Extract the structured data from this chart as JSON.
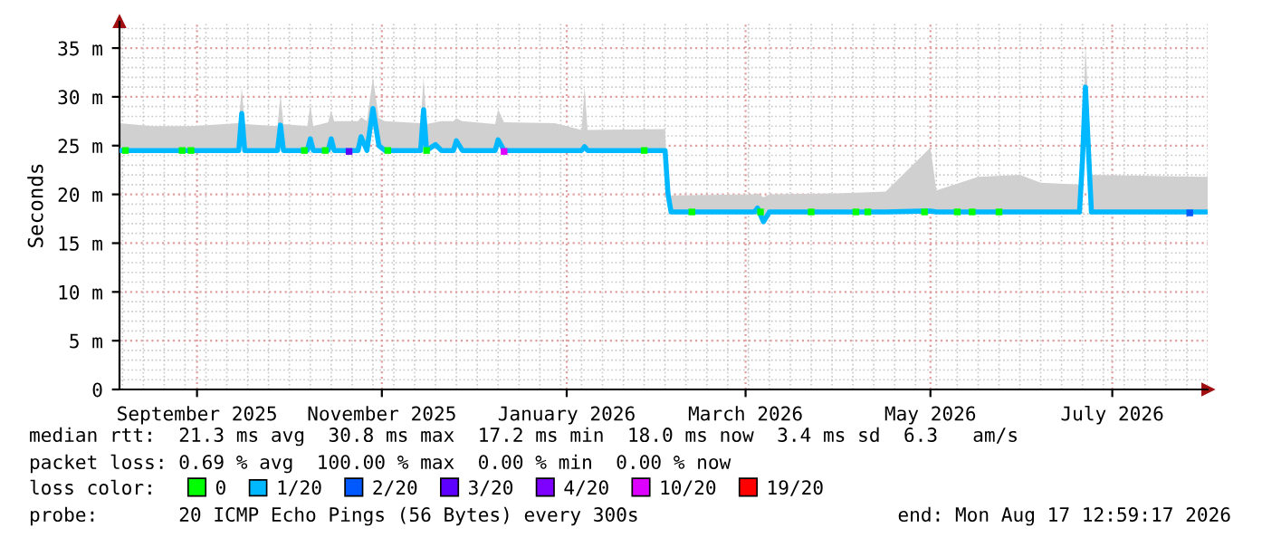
{
  "chart_data": {
    "type": "line",
    "ylabel": "Seconds",
    "xlim": [
      "2025-08-17",
      "2026-08-17"
    ],
    "xticks": [
      {
        "value": "2025-09-12",
        "label": "September 2025"
      },
      {
        "value": "2025-11-13",
        "label": "November 2025"
      },
      {
        "value": "2026-01-14",
        "label": "January 2026"
      },
      {
        "value": "2026-03-15",
        "label": "March 2026"
      },
      {
        "value": "2026-05-16",
        "label": "May 2026"
      },
      {
        "value": "2026-07-16",
        "label": "July 2026"
      }
    ],
    "ylim": [
      0,
      37.7
    ],
    "yticks": [
      0,
      {
        "value": 5,
        "label": "5 m"
      },
      {
        "value": 10,
        "label": "10 m"
      },
      {
        "value": 15,
        "label": "15 m"
      },
      {
        "value": 20,
        "label": "20 m"
      },
      {
        "value": 25,
        "label": "25 m"
      },
      {
        "value": 30,
        "label": "30 m"
      },
      {
        "value": 35,
        "label": "35 m"
      }
    ],
    "grid": true,
    "legend": "bottom",
    "legend_title": "loss color:",
    "series": [
      {
        "name": "0",
        "type": "scatter",
        "marker": "square",
        "color": "#00ff00",
        "x": [
          "2025-08-19",
          "2025-09-07",
          "2025-09-10",
          "2025-10-18",
          "2025-10-25",
          "2025-11-15",
          "2025-11-28",
          "2026-02-09",
          "2026-02-25",
          "2026-03-20",
          "2026-04-06",
          "2026-04-21",
          "2026-04-25",
          "2026-05-14",
          "2026-05-25",
          "2026-05-30",
          "2026-06-08"
        ],
        "values": [
          24.5,
          24.5,
          24.5,
          24.5,
          24.5,
          24.5,
          24.5,
          24.5,
          18.2,
          18.2,
          18.2,
          18.2,
          18.2,
          18.2,
          18.2,
          18.2,
          18.2
        ]
      },
      {
        "name": "1/20",
        "color": "#00b8ff",
        "x": [
          "2025-08-17",
          "2025-08-28",
          "2025-09-10",
          "2025-09-26",
          "2025-09-27",
          "2025-09-28",
          "2025-10-09",
          "2025-10-10",
          "2025-10-11",
          "2025-10-19",
          "2025-10-20",
          "2025-10-21",
          "2025-10-26",
          "2025-10-27",
          "2025-10-28",
          "2025-11-05",
          "2025-11-06",
          "2025-11-08",
          "2025-11-10",
          "2025-11-12",
          "2025-11-14",
          "2025-11-26",
          "2025-11-27",
          "2025-11-28",
          "2025-12-01",
          "2025-12-03",
          "2025-12-07",
          "2025-12-08",
          "2025-12-10",
          "2025-12-21",
          "2025-12-22",
          "2025-12-24",
          "2026-01-10",
          "2026-01-19",
          "2026-01-20",
          "2026-01-21",
          "2026-02-16",
          "2026-02-17",
          "2026-02-18",
          "2026-03-18",
          "2026-03-19",
          "2026-03-21",
          "2026-03-23",
          "2026-04-15",
          "2026-05-01",
          "2026-05-16",
          "2026-05-18",
          "2026-06-01",
          "2026-06-15",
          "2026-06-22",
          "2026-07-05",
          "2026-07-06",
          "2026-07-07",
          "2026-07-09",
          "2026-08-17"
        ],
        "values": [
          24.5,
          24.5,
          24.5,
          24.5,
          28.3,
          24.5,
          24.5,
          27.1,
          24.5,
          24.5,
          25.7,
          24.5,
          24.5,
          25.7,
          24.5,
          24.5,
          25.9,
          24.5,
          28.8,
          25.0,
          24.5,
          24.5,
          28.7,
          24.5,
          25.1,
          24.5,
          24.5,
          25.5,
          24.5,
          24.5,
          25.6,
          24.5,
          24.5,
          24.5,
          24.9,
          24.5,
          24.5,
          20.0,
          18.2,
          18.2,
          18.6,
          17.2,
          18.2,
          18.2,
          18.2,
          18.3,
          18.2,
          18.2,
          18.2,
          18.2,
          18.2,
          23.5,
          31.0,
          18.2,
          18.2
        ],
        "lower": [
          24.5,
          24.5,
          24.5,
          24.5,
          28.3,
          24.5,
          24.5,
          27.1,
          24.5,
          24.5,
          25.7,
          24.5,
          24.5,
          25.7,
          24.5,
          24.5,
          25.9,
          24.5,
          28.8,
          25.0,
          24.5,
          24.5,
          28.7,
          24.5,
          25.1,
          24.5,
          24.5,
          25.5,
          24.5,
          24.5,
          25.6,
          24.5,
          24.5,
          24.5,
          24.9,
          24.5,
          24.5,
          20.0,
          18.2,
          18.2,
          18.6,
          17.2,
          18.2,
          18.2,
          18.2,
          18.3,
          18.2,
          18.2,
          18.2,
          18.2,
          18.2,
          23.5,
          31.0,
          18.2,
          18.2
        ],
        "upper": [
          27.3,
          27.0,
          27.0,
          27.3,
          31.0,
          27.2,
          27.0,
          30.2,
          27.2,
          27.0,
          29.2,
          27.0,
          27.4,
          28.6,
          27.5,
          27.5,
          27.9,
          27.5,
          32.0,
          27.8,
          27.5,
          27.3,
          32.0,
          27.2,
          27.4,
          27.5,
          27.5,
          27.8,
          27.5,
          27.2,
          28.7,
          27.4,
          27.3,
          26.6,
          31.0,
          26.6,
          26.7,
          20.0,
          19.9,
          20.0,
          20.1,
          19.7,
          20.0,
          20.1,
          20.3,
          24.8,
          20.4,
          21.8,
          22.0,
          21.2,
          21.0,
          23.5,
          35.6,
          22.0,
          21.8
        ]
      },
      {
        "name": "2/20",
        "type": "scatter",
        "marker": "square",
        "color": "#0059ff",
        "x": [
          "2026-08-11"
        ],
        "values": [
          18.1
        ]
      },
      {
        "name": "3/20",
        "type": "scatter",
        "marker": "square",
        "color": "#5e00ff",
        "x": [
          "2025-11-02"
        ],
        "values": [
          24.4
        ]
      },
      {
        "name": "4/20",
        "type": "scatter",
        "marker": "square",
        "color": "#7e00ff"
      },
      {
        "name": "10/20",
        "type": "scatter",
        "marker": "square",
        "color": "#dd00ff",
        "x": [
          "2025-12-24"
        ],
        "values": [
          24.4
        ]
      },
      {
        "name": "19/20",
        "type": "scatter",
        "marker": "square",
        "color": "#ff0000"
      }
    ],
    "annotations": [
      "median rtt:  21.3 ms avg  30.8 ms max  17.2 ms min  18.0 ms now  3.4 ms sd  6.3   am/s",
      "packet loss: 0.69 % avg  100.00 % max  0.00 % min  0.00 % now",
      "probe:       20 ICMP Echo Pings (56 Bytes) every 300s",
      "end: Mon Aug 17 12:59:17 2026"
    ]
  }
}
